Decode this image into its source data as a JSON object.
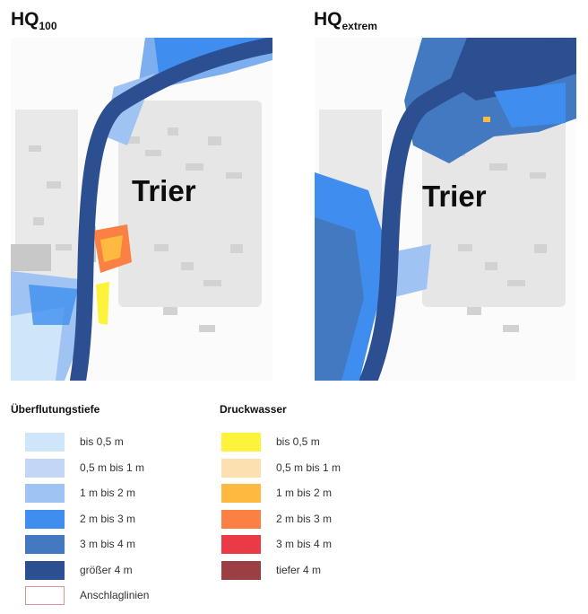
{
  "maps": [
    {
      "title_main": "HQ",
      "title_sub": "100",
      "city_label": "Trier"
    },
    {
      "title_main": "HQ",
      "title_sub": "extrem",
      "city_label": "Trier"
    }
  ],
  "legend": {
    "flood_depth": {
      "heading": "Überflutungstiefe",
      "items": [
        {
          "label": "bis 0,5 m",
          "color": "#cfe5f8"
        },
        {
          "label": "0,5 m bis 1 m",
          "color": "#c3d6f5"
        },
        {
          "label": "1 m bis 2 m",
          "color": "#9fc3f2"
        },
        {
          "label": "2 m bis 3 m",
          "color": "#3f8eef"
        },
        {
          "label": "3 m bis 4 m",
          "color": "#4279c0"
        },
        {
          "label": "größer 4 m",
          "color": "#2c4f91"
        }
      ],
      "boundary": {
        "label": "Anschlaglinien",
        "color": "#d99595"
      }
    },
    "pressure_water": {
      "heading": "Druckwasser",
      "items": [
        {
          "label": "bis 0,5 m",
          "color": "#fdf33a"
        },
        {
          "label": "0,5 m bis 1 m",
          "color": "#fde0b0"
        },
        {
          "label": "1 m bis 2 m",
          "color": "#fdb940"
        },
        {
          "label": "2 m bis 3 m",
          "color": "#fb8044"
        },
        {
          "label": "3 m bis 4 m",
          "color": "#ea3a46"
        },
        {
          "label": "tiefer 4 m",
          "color": "#9d3f42"
        }
      ]
    }
  }
}
